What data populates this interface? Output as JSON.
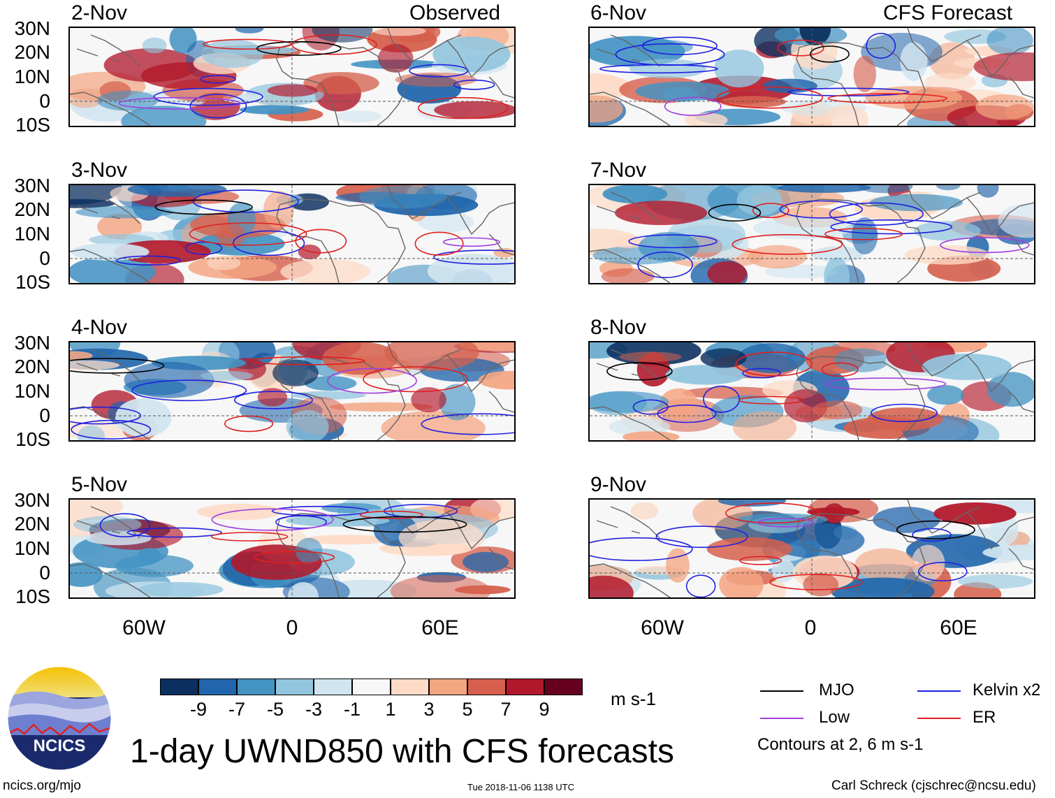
{
  "header": {
    "left_label": "Observed",
    "right_label": "CFS Forecast"
  },
  "observed_dates": [
    "2-Nov",
    "3-Nov",
    "4-Nov",
    "5-Nov"
  ],
  "forecast_dates": [
    "6-Nov",
    "7-Nov",
    "8-Nov",
    "9-Nov"
  ],
  "lat_labels": [
    "30N",
    "20N",
    "10N",
    "0",
    "10S"
  ],
  "lon_labels": [
    "60W",
    "0",
    "60E"
  ],
  "colorbar": {
    "colors": [
      "#0b2f5f",
      "#2166ac",
      "#4393c3",
      "#92c5de",
      "#d1e5f0",
      "#f7f7f7",
      "#fddbc7",
      "#f4a582",
      "#d6604d",
      "#b2182b",
      "#67001f"
    ],
    "labels": [
      "-9",
      "-7",
      "-5",
      "-3",
      "-1",
      "1",
      "3",
      "5",
      "7",
      "9"
    ],
    "units": "m s-1"
  },
  "legend": {
    "mjo": "MJO",
    "kelvin": "Kelvin x2",
    "low": "Low",
    "er": "ER",
    "note": "Contours at 2, 6 m s-1",
    "colors": {
      "mjo": "#000000",
      "kelvin": "#1f1fe0",
      "low": "#a040e0",
      "er": "#e01f1f"
    }
  },
  "title": "1-day UWND850 with CFS forecasts",
  "logo_text": "NCICS",
  "footer": {
    "url": "ncics.org/mjo",
    "timestamp": "Tue 2018-11-06 1138 UTC",
    "credit": "Carl Schreck (cjschrec@ncsu.edu)"
  }
}
